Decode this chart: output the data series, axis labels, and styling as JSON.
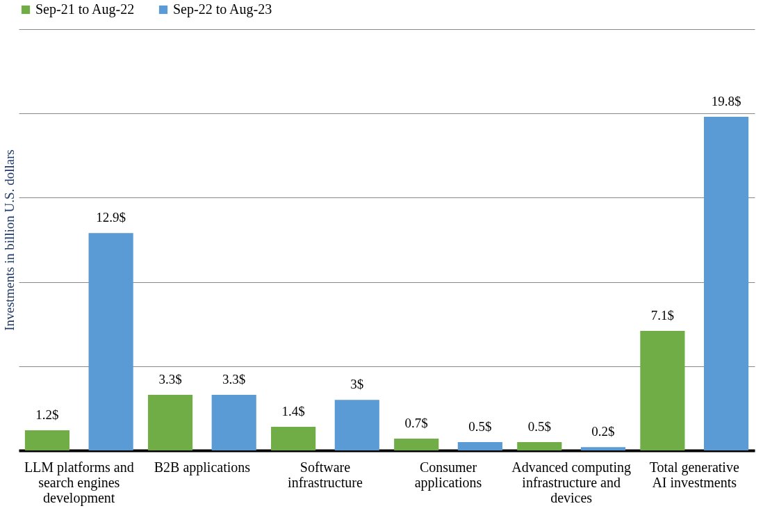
{
  "chart_data": {
    "type": "bar",
    "ylabel": "Investments in billion U.S. dollars",
    "categories": [
      "LLM platforms and search engines development",
      "B2B applications",
      "Software infrastructure",
      "Consumer applications",
      "Advanced computing infrastructure and devices",
      "Total generative AI investments"
    ],
    "series": [
      {
        "name": "Sep-21 to Aug-22",
        "color": "#70ad47",
        "values": [
          1.2,
          3.3,
          1.4,
          0.7,
          0.5,
          7.1
        ],
        "value_labels": [
          "1.2$",
          "3.3$",
          "1.4$",
          "0.7$",
          "0.5$",
          "7.1$"
        ]
      },
      {
        "name": "Sep-22 to Aug-23",
        "color": "#5b9bd5",
        "values": [
          12.9,
          3.3,
          3.0,
          0.5,
          0.2,
          19.8
        ],
        "value_labels": [
          "12.9$",
          "3.3$",
          "3$",
          "0.5$",
          "0.2$",
          "19.8$"
        ]
      }
    ],
    "ylim": [
      0,
      25
    ],
    "yticks": [
      {
        "value": 0,
        "label": null
      },
      {
        "value": 5,
        "label": null
      },
      {
        "value": 10,
        "label": null
      },
      {
        "value": 15,
        "label": null
      },
      {
        "value": 20,
        "label": null
      },
      {
        "value": 25,
        "label": null
      }
    ],
    "tick_labels": "x",
    "grid": "y",
    "legend": "top"
  }
}
